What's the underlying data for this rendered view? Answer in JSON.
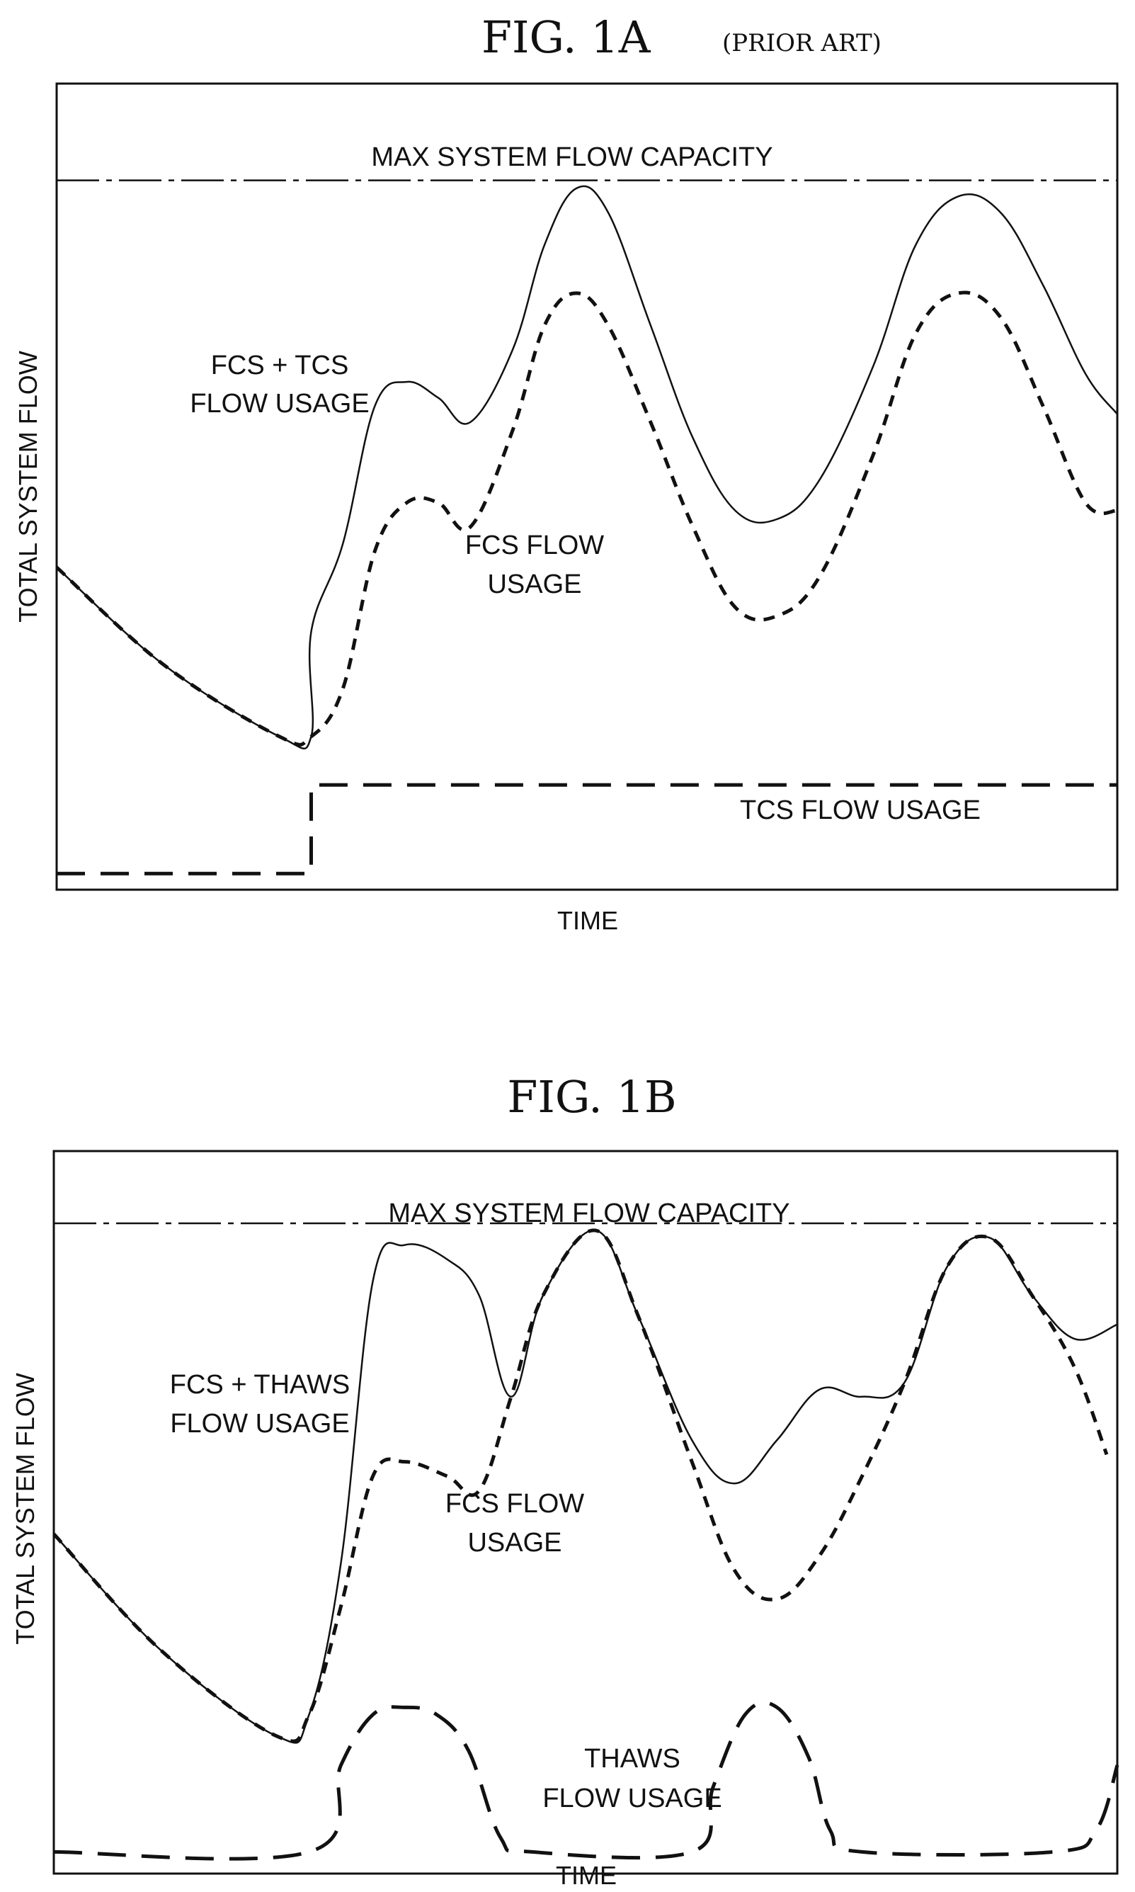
{
  "chart_data": [
    {
      "type": "line",
      "title": "FIG. 1A",
      "subtitle": "(PRIOR ART)",
      "xlabel": "TIME",
      "ylabel": "TOTAL SYSTEM FLOW",
      "xlim": [
        0,
        100
      ],
      "ylim": [
        0,
        100
      ],
      "grid": false,
      "annotations": {
        "max_capacity": "MAX SYSTEM FLOW CAPACITY",
        "combined_line1": "FCS + TCS",
        "combined_line2": "FLOW USAGE",
        "fcs_line1": "FCS FLOW",
        "fcs_line2": "USAGE",
        "secondary": "TCS FLOW USAGE"
      },
      "series": [
        {
          "name": "MAX SYSTEM FLOW CAPACITY",
          "style": "dash-dot",
          "points": [
            [
              0,
              88
            ],
            [
              100,
              88
            ]
          ]
        },
        {
          "name": "FCS + TCS FLOW USAGE",
          "style": "solid",
          "points": [
            [
              0,
              40
            ],
            [
              10,
              28
            ],
            [
              21,
              19
            ],
            [
              24,
              19
            ],
            [
              24,
              32
            ],
            [
              27,
              43
            ],
            [
              30,
              60
            ],
            [
              33,
              63
            ],
            [
              36,
              61
            ],
            [
              39,
              58
            ],
            [
              43,
              67
            ],
            [
              46,
              80
            ],
            [
              49,
              87
            ],
            [
              52,
              84
            ],
            [
              56,
              70
            ],
            [
              60,
              56
            ],
            [
              64,
              47
            ],
            [
              68,
              46
            ],
            [
              72,
              51
            ],
            [
              77,
              65
            ],
            [
              81,
              80
            ],
            [
              85,
              86
            ],
            [
              89,
              84
            ],
            [
              93,
              75
            ],
            [
              97,
              64
            ],
            [
              100,
              59
            ]
          ]
        },
        {
          "name": "FCS FLOW USAGE",
          "style": "dashed",
          "points": [
            [
              0,
              40
            ],
            [
              10,
              28
            ],
            [
              21,
              19
            ],
            [
              24,
              19
            ],
            [
              27,
              25
            ],
            [
              30,
              42
            ],
            [
              33,
              48
            ],
            [
              36,
              48
            ],
            [
              39,
              45
            ],
            [
              43,
              57
            ],
            [
              46,
              70
            ],
            [
              49,
              74
            ],
            [
              52,
              70
            ],
            [
              56,
              58
            ],
            [
              60,
              45
            ],
            [
              64,
              35
            ],
            [
              68,
              34
            ],
            [
              72,
              39
            ],
            [
              77,
              54
            ],
            [
              81,
              69
            ],
            [
              85,
              74
            ],
            [
              89,
              71
            ],
            [
              93,
              60
            ],
            [
              97,
              48
            ],
            [
              100,
              47
            ]
          ]
        },
        {
          "name": "TCS FLOW USAGE",
          "style": "long-dash",
          "points": [
            [
              0,
              2
            ],
            [
              24,
              2
            ],
            [
              24,
              13
            ],
            [
              100,
              13
            ]
          ]
        }
      ]
    },
    {
      "type": "line",
      "title": "FIG. 1B",
      "xlabel": "TIME",
      "ylabel": "TOTAL SYSTEM FLOW",
      "xlim": [
        0,
        100
      ],
      "ylim": [
        0,
        100
      ],
      "grid": false,
      "annotations": {
        "max_capacity": "MAX SYSTEM FLOW CAPACITY",
        "combined_line1": "FCS + THAWS",
        "combined_line2": "FLOW USAGE",
        "fcs_line1": "FCS FLOW",
        "fcs_line2": "USAGE",
        "secondary_line1": "THAWS",
        "secondary_line2": "FLOW USAGE"
      },
      "series": [
        {
          "name": "MAX SYSTEM FLOW CAPACITY",
          "style": "dash-dot",
          "points": [
            [
              0,
              90
            ],
            [
              100,
              90
            ]
          ]
        },
        {
          "name": "FCS + THAWS FLOW USAGE",
          "style": "solid",
          "points": [
            [
              0,
              47
            ],
            [
              10,
              31
            ],
            [
              21,
              19
            ],
            [
              24,
              22
            ],
            [
              27,
              43
            ],
            [
              30,
              82
            ],
            [
              33,
              87
            ],
            [
              37,
              85
            ],
            [
              40,
              80
            ],
            [
              43,
              66
            ],
            [
              46,
              80
            ],
            [
              51,
              89
            ],
            [
              55,
              77
            ],
            [
              60,
              60
            ],
            [
              64,
              54
            ],
            [
              68,
              60
            ],
            [
              72,
              67
            ],
            [
              76,
              66
            ],
            [
              80,
              68
            ],
            [
              84,
              84
            ],
            [
              88,
              88
            ],
            [
              92,
              80
            ],
            [
              96,
              74
            ],
            [
              100,
              76
            ]
          ]
        },
        {
          "name": "FCS FLOW USAGE",
          "style": "dashed",
          "points": [
            [
              0,
              47
            ],
            [
              10,
              31
            ],
            [
              21,
              19
            ],
            [
              24,
              22
            ],
            [
              27,
              37
            ],
            [
              30,
              55
            ],
            [
              33,
              57
            ],
            [
              37,
              55
            ],
            [
              40,
              53
            ],
            [
              43,
              66
            ],
            [
              46,
              80
            ],
            [
              51,
              89
            ],
            [
              55,
              77
            ],
            [
              60,
              57
            ],
            [
              64,
              42
            ],
            [
              68,
              38
            ],
            [
              72,
              44
            ],
            [
              76,
              55
            ],
            [
              80,
              68
            ],
            [
              84,
              84
            ],
            [
              88,
              88
            ],
            [
              92,
              80
            ],
            [
              96,
              70
            ],
            [
              99,
              58
            ]
          ]
        },
        {
          "name": "THAWS FLOW USAGE",
          "style": "long-dash",
          "points": [
            [
              0,
              3
            ],
            [
              24,
              3
            ],
            [
              27,
              15
            ],
            [
              30,
              22
            ],
            [
              33,
              23
            ],
            [
              36,
              22
            ],
            [
              39,
              17
            ],
            [
              42,
              5
            ],
            [
              45,
              3
            ],
            [
              60,
              3
            ],
            [
              62,
              12
            ],
            [
              65,
              22
            ],
            [
              68,
              23
            ],
            [
              71,
              16
            ],
            [
              73,
              6
            ],
            [
              76,
              3
            ],
            [
              94,
              3
            ],
            [
              98,
              6
            ],
            [
              100,
              15
            ]
          ]
        }
      ]
    }
  ]
}
